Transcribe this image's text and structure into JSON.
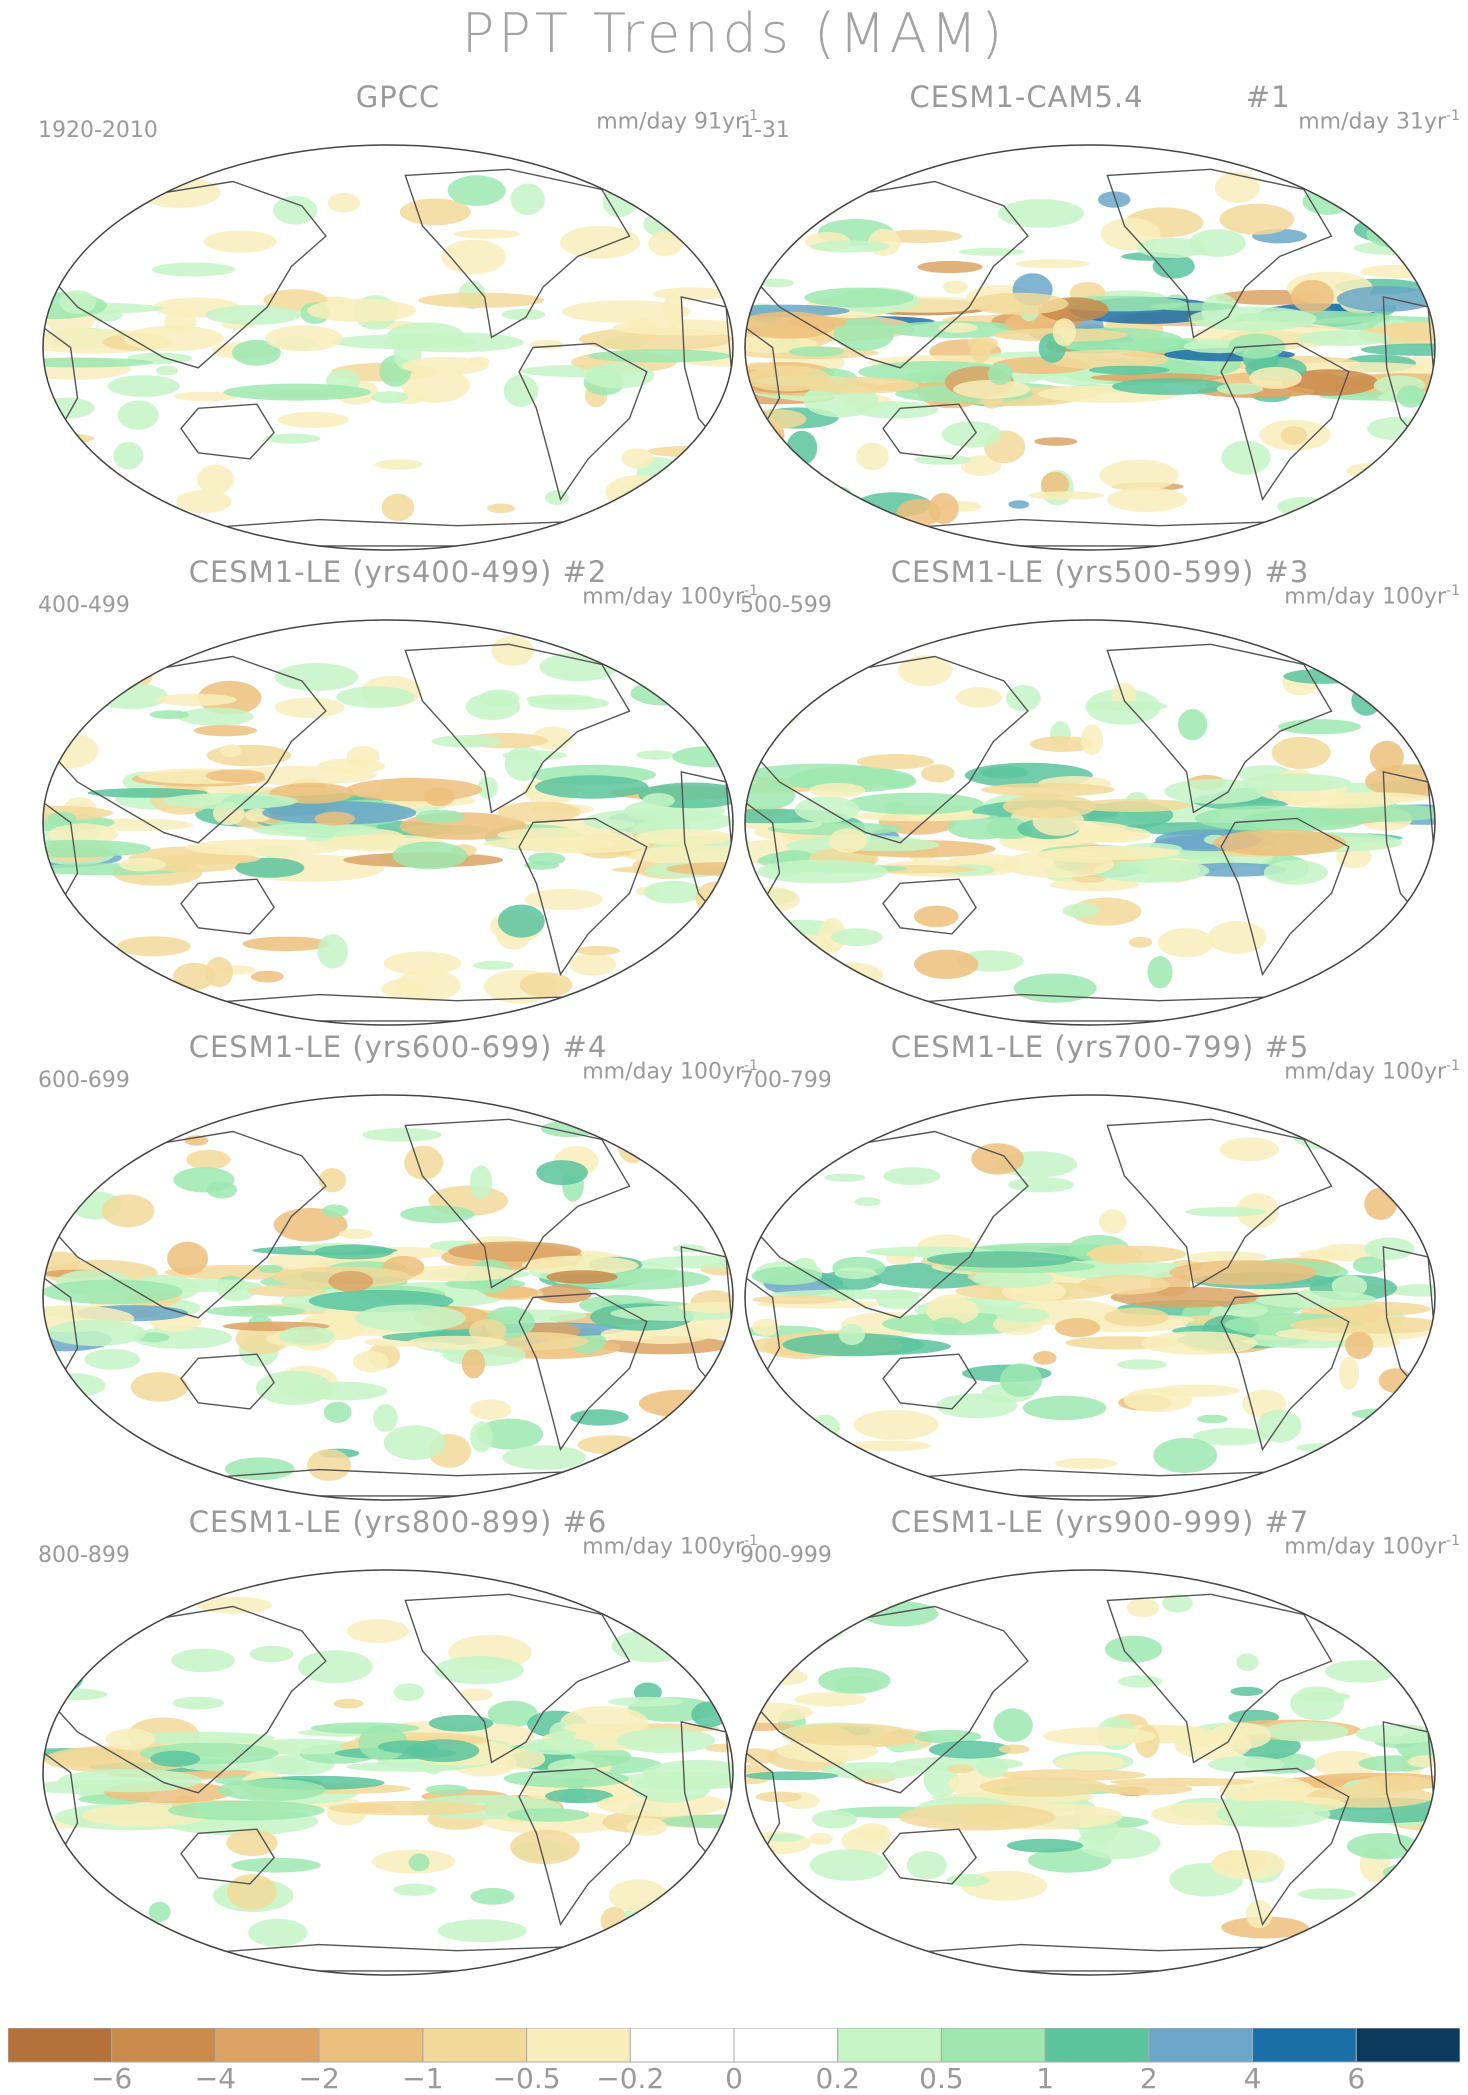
{
  "title": "PPT Trends (MAM)",
  "panels": [
    {
      "title": "GPCC",
      "years": "1920-2010",
      "units_pre": "mm/day 91yr",
      "units_sup": "-1",
      "intensity": 0.35,
      "seed": 3
    },
    {
      "title": "CESM1-CAM5.4          #1",
      "years": "1-31",
      "units_pre": "mm/day 31yr",
      "units_sup": "-1",
      "intensity": 1.0,
      "seed": 11
    },
    {
      "title": "CESM1-LE (yrs400-499) #2",
      "years": "400-499",
      "units_pre": "mm/day 100yr",
      "units_sup": "-1",
      "intensity": 0.7,
      "seed": 21
    },
    {
      "title": "CESM1-LE (yrs500-599) #3",
      "years": "500-599",
      "units_pre": "mm/day 100yr",
      "units_sup": "-1",
      "intensity": 0.7,
      "seed": 31
    },
    {
      "title": "CESM1-LE (yrs600-699) #4",
      "years": "600-699",
      "units_pre": "mm/day 100yr",
      "units_sup": "-1",
      "intensity": 0.75,
      "seed": 41
    },
    {
      "title": "CESM1-LE (yrs700-799) #5",
      "years": "700-799",
      "units_pre": "mm/day 100yr",
      "units_sup": "-1",
      "intensity": 0.65,
      "seed": 51
    },
    {
      "title": "CESM1-LE (yrs800-899) #6",
      "years": "800-899",
      "units_pre": "mm/day 100yr",
      "units_sup": "-1",
      "intensity": 0.6,
      "seed": 61
    },
    {
      "title": "CESM1-LE (yrs900-999) #7",
      "years": "900-999",
      "units_pre": "mm/day 100yr",
      "units_sup": "-1",
      "intensity": 0.6,
      "seed": 71
    }
  ],
  "colorbar": {
    "colors": [
      "#b5713a",
      "#c98a4a",
      "#dca364",
      "#edbf7c",
      "#f2d99a",
      "#f8eebb",
      "#ffffff",
      "#ffffff",
      "#c6f5c6",
      "#9ee8b0",
      "#5bc49e",
      "#6aa7c8",
      "#1a6fa8",
      "#0b3a5e"
    ],
    "labels": [
      "-6",
      "-4",
      "-2",
      "-1",
      "-0.5",
      "-0.2",
      "0",
      "0.2",
      "0.5",
      "1",
      "2",
      "4",
      "6"
    ]
  }
}
